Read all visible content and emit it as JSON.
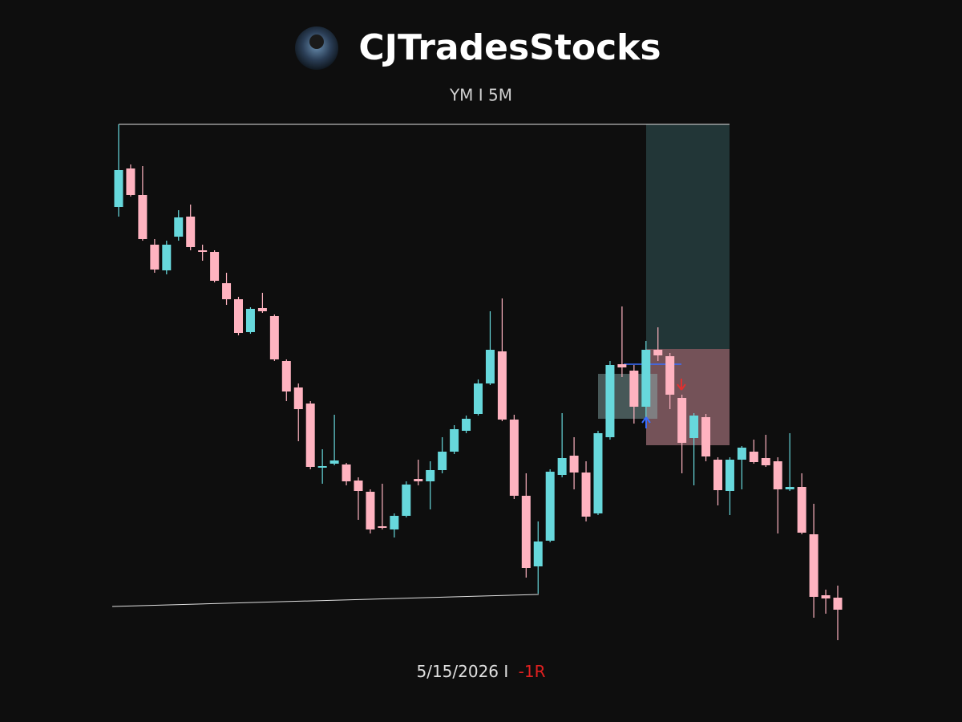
{
  "chart_data": {
    "type": "candlestick",
    "title": "CJTradesStocks",
    "subtitle": "YM I 5M",
    "annotations": [
      "5/15/2026 I",
      "-1R"
    ],
    "up_color": "#67d8dc",
    "down_color": "#ffb3c0",
    "ylim": [
      0,
      900
    ],
    "open": [
      642,
      690,
      657,
      595,
      563,
      605,
      630,
      588,
      586,
      547,
      527,
      486,
      516,
      506,
      450,
      417,
      397,
      317,
      322,
      321,
      301,
      287,
      244,
      240,
      257,
      303,
      300,
      314,
      337,
      363,
      384,
      422,
      462,
      377,
      282,
      194,
      226,
      308,
      332,
      311,
      260,
      355,
      446,
      438,
      393,
      464,
      456,
      404,
      354,
      380,
      327,
      288,
      327,
      337,
      329,
      325,
      290,
      293,
      234,
      158,
      155
    ],
    "high": [
      745,
      695,
      693,
      602,
      600,
      638,
      645,
      595,
      588,
      560,
      530,
      517,
      535,
      508,
      452,
      422,
      400,
      340,
      383,
      323,
      305,
      290,
      297,
      260,
      300,
      327,
      325,
      355,
      370,
      382,
      427,
      512,
      528,
      383,
      310,
      250,
      315,
      385,
      355,
      325,
      363,
      450,
      518,
      445,
      475,
      492,
      460,
      408,
      385,
      384,
      330,
      330,
      344,
      352,
      358,
      330,
      360,
      310,
      272,
      165,
      170
    ],
    "low": [
      630,
      655,
      600,
      560,
      558,
      600,
      588,
      575,
      548,
      520,
      482,
      484,
      510,
      450,
      400,
      350,
      315,
      297,
      320,
      295,
      252,
      235,
      240,
      230,
      255,
      295,
      265,
      310,
      334,
      360,
      382,
      420,
      375,
      278,
      180,
      160,
      224,
      305,
      290,
      250,
      258,
      352,
      430,
      372,
      367,
      450,
      390,
      310,
      295,
      325,
      270,
      258,
      290,
      322,
      318,
      235,
      288,
      234,
      130,
      135,
      102
    ],
    "close": [
      688,
      657,
      602,
      564,
      595,
      629,
      592,
      586,
      550,
      527,
      485,
      515,
      512,
      452,
      412,
      390,
      318,
      319,
      326,
      300,
      288,
      240,
      242,
      257,
      296,
      300,
      314,
      337,
      365,
      378,
      422,
      464,
      377,
      282,
      192,
      225,
      312,
      329,
      311,
      256,
      360,
      445,
      442,
      393,
      464,
      457,
      408,
      348,
      382,
      331,
      289,
      327,
      342,
      324,
      320,
      290,
      293,
      236,
      156,
      154,
      140
    ]
  }
}
